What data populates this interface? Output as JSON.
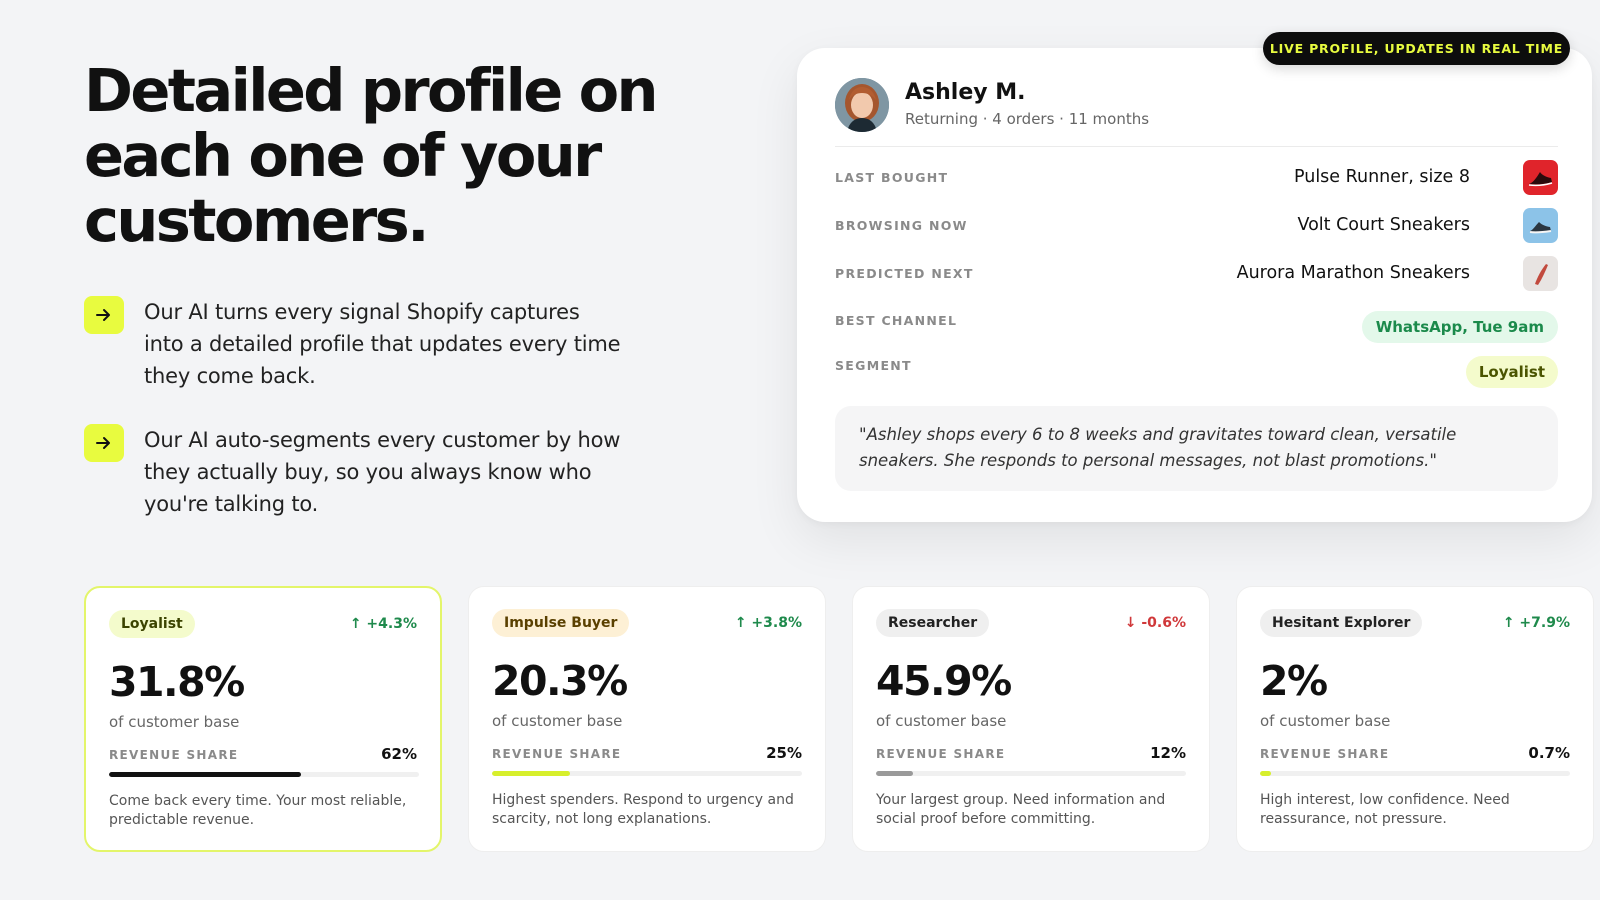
{
  "hero": {
    "title": "Detailed profile on each one of your customers.",
    "features": [
      "Our AI turns every signal Shopify captures into a detailed profile that updates every time they come back.",
      "Our AI auto-segments every customer by how they actually buy, so you always know who you're talking to."
    ]
  },
  "profile": {
    "badge": "LIVE PROFILE, UPDATES IN REAL TIME",
    "name": "Ashley M.",
    "subtitle": "Returning · 4 orders · 11 months",
    "rows": [
      {
        "label": "LAST BOUGHT",
        "value": "Pulse Runner, size 8",
        "icon": "red-running-shoe-icon"
      },
      {
        "label": "BROWSING NOW",
        "value": "Volt Court Sneakers",
        "icon": "blue-court-sneaker-icon"
      },
      {
        "label": "PREDICTED NEXT",
        "value": "Aurora Marathon Sneakers",
        "icon": "marathon-sneaker-icon"
      },
      {
        "label": "BEST CHANNEL",
        "value": "WhatsApp, Tue 9am"
      },
      {
        "label": "SEGMENT",
        "value": "Loyalist"
      }
    ],
    "quote": "\"Ashley shops every 6 to 8 weeks and gravitates toward clean, versatile sneakers. She responds to personal messages, not blast promotions.\""
  },
  "segments": [
    {
      "name": "Loyalist",
      "trend": "↑ +4.3%",
      "direction": "up",
      "value": "31.8%",
      "of_label": "of customer base",
      "revenue_label": "REVENUE SHARE",
      "revenue_share": "62%",
      "revenue_fraction": 0.62,
      "description": "Come back every time. Your most reliable, predictable revenue.",
      "pill_color": "#f4fbcc",
      "pill_text_color": "#3b4300",
      "bar_color": "#111111"
    },
    {
      "name": "Impulse Buyer",
      "trend": "↑ +3.8%",
      "direction": "up",
      "value": "20.3%",
      "of_label": "of customer base",
      "revenue_label": "REVENUE SHARE",
      "revenue_share": "25%",
      "revenue_fraction": 0.25,
      "description": "Highest spenders. Respond to urgency and scarcity, not long explanations.",
      "pill_color": "#fdf0d5",
      "pill_text_color": "#5a4000",
      "bar_color": "#d7ef2c"
    },
    {
      "name": "Researcher",
      "trend": "↓ -0.6%",
      "direction": "down",
      "value": "45.9%",
      "of_label": "of customer base",
      "revenue_label": "REVENUE SHARE",
      "revenue_share": "12%",
      "revenue_fraction": 0.12,
      "description": "Your largest group. Need information and social proof before committing.",
      "pill_color": "#efefef",
      "pill_text_color": "#222222",
      "bar_color": "#9a9a9a"
    },
    {
      "name": "Hesitant Explorer",
      "trend": "↑ +7.9%",
      "direction": "up",
      "value": "2%",
      "of_label": "of customer base",
      "revenue_label": "REVENUE SHARE",
      "revenue_share": "0.7%",
      "revenue_fraction": 0.007,
      "description": "High interest, low confidence. Need reassurance, not pressure.",
      "pill_color": "#efefef",
      "pill_text_color": "#222222",
      "bar_color": "#d7ef2c"
    }
  ]
}
